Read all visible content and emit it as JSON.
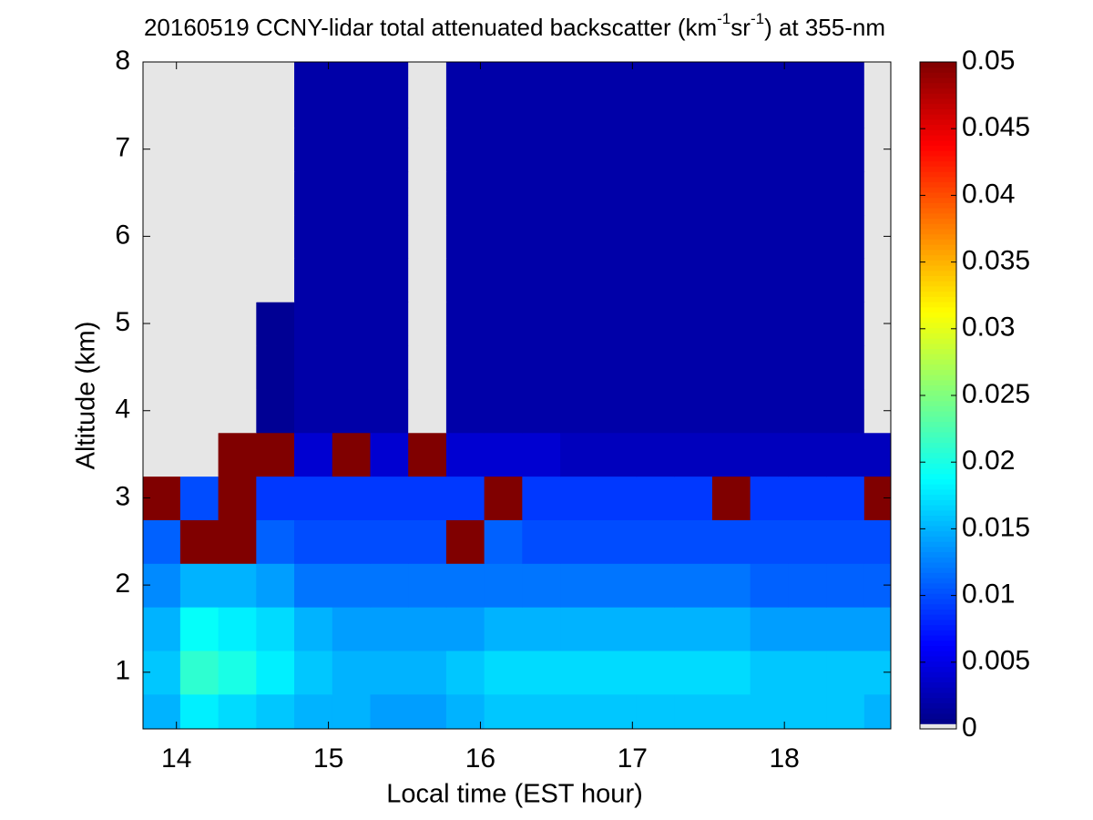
{
  "chart_data": {
    "type": "heatmap",
    "title": [
      "20160519 CCNY-lidar total attenuated backscatter (km",
      "-1",
      "sr",
      "-1",
      ") at 355-nm"
    ],
    "x_label": "Local time (EST hour)",
    "y_label": "Altitude (km)",
    "xlim": [
      13.78,
      18.7
    ],
    "ylim": [
      0.35,
      8
    ],
    "xticks": [
      14,
      15,
      16,
      17,
      18
    ],
    "yticks": [
      1,
      2,
      3,
      4,
      5,
      6,
      7,
      8
    ],
    "clim": [
      0,
      0.05
    ],
    "cticks": [
      0,
      0.005,
      0.01,
      0.015,
      0.02,
      0.025,
      0.03,
      0.035,
      0.04,
      0.045,
      0.05
    ],
    "colormap": "jet",
    "x": [
      13.9,
      14.15,
      14.4,
      14.65,
      14.9,
      15.15,
      15.4,
      15.65,
      15.9,
      16.15,
      16.4,
      16.65,
      16.9,
      17.15,
      17.4,
      17.65,
      17.9,
      18.15,
      18.4,
      18.65
    ],
    "y": [
      0.5,
      1.0,
      1.5,
      2.0,
      2.5,
      3.0,
      3.5,
      4.0,
      4.5,
      5.0,
      5.5,
      6.0,
      6.5,
      7.0,
      7.5,
      8.0
    ],
    "z": [
      [
        0.015,
        0.018,
        0.017,
        0.016,
        0.015,
        0.015,
        0.014,
        0.014,
        0.015,
        0.016,
        0.016,
        0.016,
        0.016,
        0.016,
        0.016,
        0.016,
        0.016,
        0.016,
        0.016,
        0.015
      ],
      [
        0.016,
        0.021,
        0.02,
        0.018,
        0.016,
        0.015,
        0.015,
        0.015,
        0.016,
        0.017,
        0.017,
        0.017,
        0.017,
        0.017,
        0.017,
        0.017,
        0.016,
        0.016,
        0.016,
        0.016
      ],
      [
        0.015,
        0.019,
        0.018,
        0.017,
        0.015,
        0.014,
        0.014,
        0.014,
        0.014,
        0.015,
        0.015,
        0.015,
        0.015,
        0.015,
        0.015,
        0.015,
        0.014,
        0.014,
        0.014,
        0.014
      ],
      [
        0.013,
        0.015,
        0.015,
        0.014,
        0.012,
        0.012,
        0.012,
        0.012,
        0.012,
        0.012,
        0.012,
        0.012,
        0.012,
        0.012,
        0.012,
        0.012,
        0.011,
        0.011,
        0.011,
        0.011
      ],
      [
        0.011,
        0.05,
        0.05,
        0.011,
        0.01,
        0.01,
        0.01,
        0.01,
        0.05,
        0.011,
        0.01,
        0.01,
        0.01,
        0.01,
        0.01,
        0.01,
        0.01,
        0.01,
        0.01,
        0.01
      ],
      [
        0.05,
        0.01,
        0.05,
        0.009,
        0.009,
        0.009,
        0.009,
        0.009,
        0.009,
        0.05,
        0.009,
        0.009,
        0.009,
        0.009,
        0.009,
        0.05,
        0.009,
        0.009,
        0.009,
        0.05
      ],
      [
        0,
        0,
        0.05,
        0.05,
        0.004,
        0.05,
        0.004,
        0.05,
        0.004,
        0.004,
        0.004,
        0.003,
        0.003,
        0.003,
        0.003,
        0.003,
        0.003,
        0.003,
        0.003,
        0.003
      ],
      [
        0,
        0,
        0,
        0.001,
        0.002,
        0.002,
        0.002,
        0,
        0.002,
        0.002,
        0.002,
        0.002,
        0.002,
        0.002,
        0.002,
        0.002,
        0.002,
        0.002,
        0.002,
        0
      ],
      [
        0,
        0,
        0,
        0.001,
        0.002,
        0.002,
        0.002,
        0,
        0.002,
        0.002,
        0.002,
        0.002,
        0.002,
        0.002,
        0.002,
        0.002,
        0.002,
        0.002,
        0.002,
        0
      ],
      [
        0,
        0,
        0,
        0.001,
        0.002,
        0.002,
        0.002,
        0,
        0.002,
        0.002,
        0.002,
        0.002,
        0.002,
        0.002,
        0.002,
        0.002,
        0.002,
        0.002,
        0.002,
        0
      ],
      [
        0,
        0,
        0,
        0,
        0.002,
        0.002,
        0.002,
        0,
        0.002,
        0.002,
        0.002,
        0.002,
        0.002,
        0.002,
        0.002,
        0.002,
        0.002,
        0.002,
        0.002,
        0
      ],
      [
        0,
        0,
        0,
        0,
        0.002,
        0.002,
        0.002,
        0,
        0.002,
        0.002,
        0.002,
        0.002,
        0.002,
        0.002,
        0.002,
        0.002,
        0.002,
        0.002,
        0.002,
        0
      ],
      [
        0,
        0,
        0,
        0,
        0.002,
        0.002,
        0.002,
        0,
        0.002,
        0.002,
        0.002,
        0.002,
        0.002,
        0.002,
        0.002,
        0.002,
        0.002,
        0.002,
        0.002,
        0
      ],
      [
        0,
        0,
        0,
        0,
        0.002,
        0.002,
        0.002,
        0,
        0.002,
        0.002,
        0.002,
        0.002,
        0.002,
        0.002,
        0.002,
        0.002,
        0.002,
        0.002,
        0.002,
        0
      ],
      [
        0,
        0,
        0,
        0,
        0.002,
        0.002,
        0.002,
        0,
        0.002,
        0.002,
        0.002,
        0.002,
        0.002,
        0.002,
        0.002,
        0.002,
        0.002,
        0.002,
        0.002,
        0
      ],
      [
        0,
        0,
        0,
        0,
        0.002,
        0.002,
        0.002,
        0,
        0.002,
        0.002,
        0.002,
        0.002,
        0.002,
        0.002,
        0.002,
        0.002,
        0.002,
        0.002,
        0.002,
        0
      ]
    ]
  }
}
